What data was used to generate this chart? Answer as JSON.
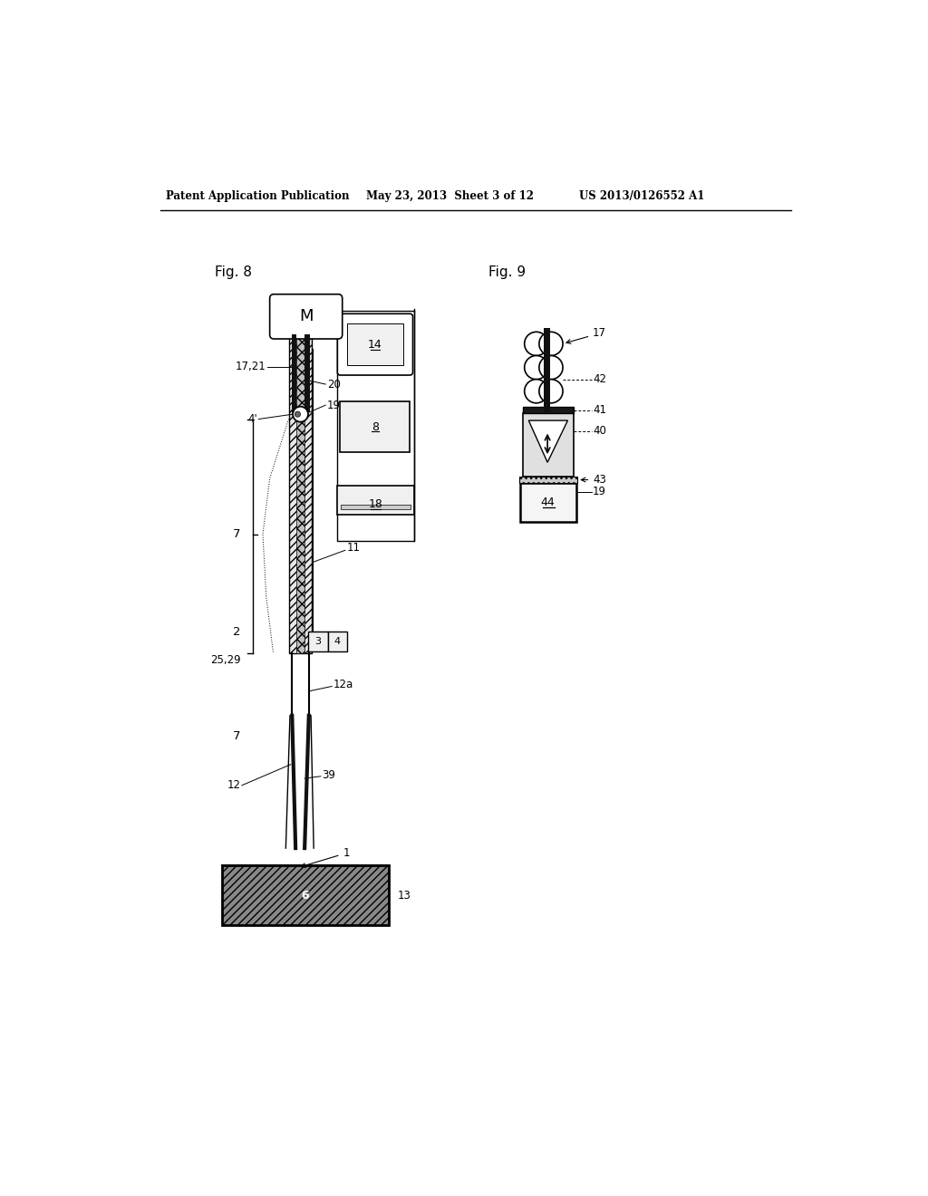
{
  "fig_width": 10.24,
  "fig_height": 13.2,
  "bg_color": "#ffffff",
  "header_left": "Patent Application Publication",
  "header_center": "May 23, 2013  Sheet 3 of 12",
  "header_right": "US 2013/0126552 A1",
  "fig8_label": "Fig. 8",
  "fig9_label": "Fig. 9",
  "lc": "#000000"
}
